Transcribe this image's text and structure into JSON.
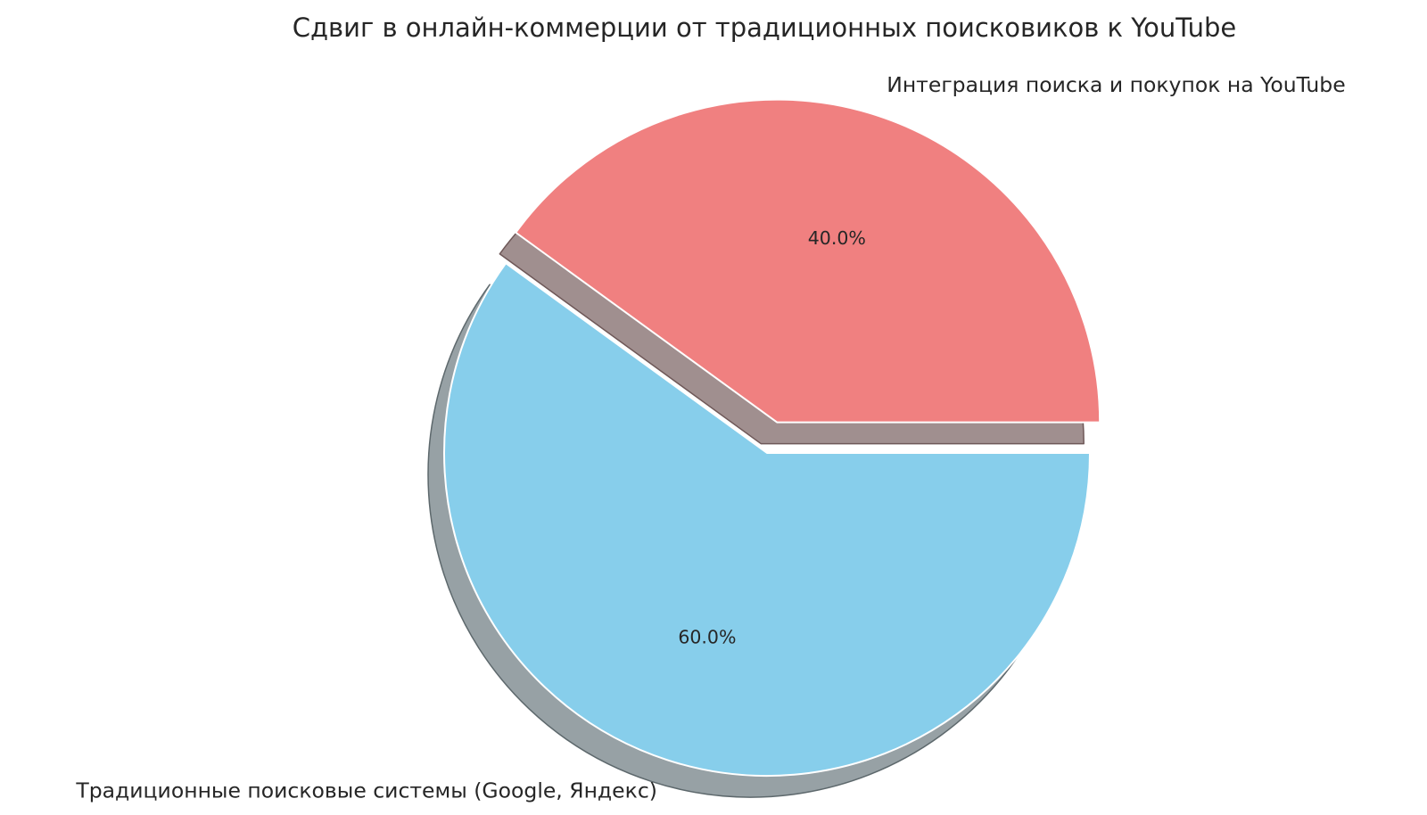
{
  "title": "Сдвиг в онлайн-коммерции от традиционных поисковиков к YouTube",
  "chart_data": {
    "type": "pie",
    "title": "Сдвиг в онлайн-коммерции от традиционных поисковиков к YouTube",
    "categories": [
      "Интеграция поиска и покупок на YouTube",
      "Традиционные поисковые системы (Google, Яндекс)"
    ],
    "values": [
      40,
      60
    ],
    "percent_labels": [
      "40.0%",
      "60.0%"
    ],
    "slices": [
      {
        "label": "Интеграция поиска и покупок на YouTube",
        "value": 40,
        "percent_label": "40.0%",
        "color": "#f08080",
        "shadow_fill": "#a08f8f",
        "shadow_stroke": "#6e5858",
        "explode": 0.1
      },
      {
        "label": "Традиционные поисковые системы (Google, Яндекс)",
        "value": 60,
        "percent_label": "60.0%",
        "color": "#87ceeb",
        "shadow_fill": "#97a1a5",
        "shadow_stroke": "#5d686c",
        "explode": 0
      }
    ],
    "start_angle": 0,
    "direction": "counterclockwise",
    "shadow": true,
    "legend_position": "none",
    "gridlines": false,
    "text_color": "#262626",
    "background_color": "#ffffff",
    "wedge_edge_color": "#ffffff"
  }
}
